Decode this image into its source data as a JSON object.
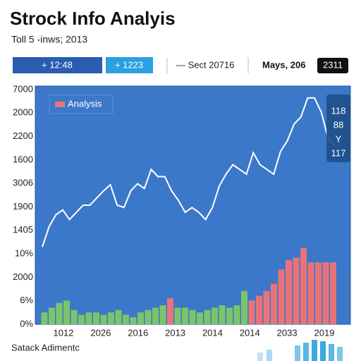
{
  "header": {
    "title": "Strock Info Analyis",
    "subtitle": "Toll 5 -inws; 2013"
  },
  "toolbar": {
    "button_1": "+ 12:48",
    "button_2": "+ 1223",
    "range": "— Sect 20716",
    "date": "Mays, 206",
    "badge": "2311"
  },
  "chart_data": {
    "type": "line",
    "legend": "Analysis",
    "legend_color": "#e8737a",
    "y_labels": [
      "7000",
      "2000",
      "2200",
      "1600",
      "3006",
      "1900",
      "1405",
      "10%",
      "2000",
      "6%",
      "0%"
    ],
    "x_labels": [
      "1012",
      "2026",
      "2016",
      "2013",
      "2014",
      "2014",
      "2033",
      "2019"
    ],
    "ylim": [
      0,
      100
    ],
    "color": "#ffffff",
    "values": [
      32.5,
      41,
      46,
      48,
      44,
      47,
      50,
      50,
      53,
      56,
      58.6,
      50,
      49,
      56,
      59,
      57,
      65,
      62,
      62,
      56,
      52,
      47,
      49,
      47,
      44,
      49,
      58,
      63,
      67,
      65,
      63,
      72,
      67,
      65,
      63,
      72.5,
      77,
      84,
      87,
      95,
      95,
      89,
      78,
      75
    ],
    "volume": {
      "values": [
        5,
        7,
        9,
        10,
        6,
        4,
        5,
        5,
        4,
        5,
        6,
        4,
        3,
        5,
        6,
        7,
        8,
        11,
        7,
        7,
        6,
        5,
        6,
        7,
        8,
        7,
        8,
        14,
        10,
        12,
        14,
        17,
        23,
        27,
        28,
        32,
        26,
        26,
        26,
        26
      ],
      "colors": [
        "#7cc46a",
        "#7cc46a",
        "#7cc46a",
        "#7cc46a",
        "#7cc46a",
        "#7cc46a",
        "#7cc46a",
        "#7cc46a",
        "#7cc46a",
        "#7cc46a",
        "#7cc46a",
        "#7cc46a",
        "#7cc46a",
        "#7cc46a",
        "#7cc46a",
        "#7cc46a",
        "#7cc46a",
        "#e8737a",
        "#7cc46a",
        "#7cc46a",
        "#7cc46a",
        "#7cc46a",
        "#7cc46a",
        "#7cc46a",
        "#7cc46a",
        "#7cc46a",
        "#7cc46a",
        "#7cc46a",
        "#e8737a",
        "#e8737a",
        "#e8737a",
        "#e8737a",
        "#e8737a",
        "#e8737a",
        "#e8737a",
        "#e8737a",
        "#e8737a",
        "#e8737a",
        "#e8737a",
        "#e8737a"
      ]
    },
    "side_box": [
      "118",
      "88",
      "Y",
      "117"
    ],
    "footer": "Satack Adimentc"
  }
}
